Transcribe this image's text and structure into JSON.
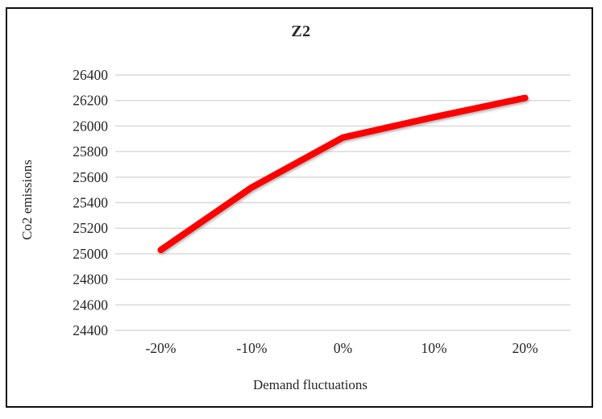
{
  "chart_data": {
    "type": "line",
    "title": "Z2",
    "xlabel": "Demand fluctuations",
    "ylabel": "Co2 emissions",
    "categories": [
      "-20%",
      "-10%",
      "0%",
      "10%",
      "20%"
    ],
    "values": [
      25030,
      25520,
      25910,
      26070,
      26220
    ],
    "ylim": [
      24400,
      26400
    ],
    "ytick_step": 200,
    "ytick_labels": [
      "24400",
      "24600",
      "24800",
      "25000",
      "25200",
      "25400",
      "25600",
      "25800",
      "26000",
      "26200",
      "26400"
    ],
    "grid": "horizontal",
    "legend": "none",
    "line_color": "#fe0000",
    "gridline_color": "#d8d8d8",
    "text_color": "#262626",
    "border_color": "#0f0f0f"
  }
}
